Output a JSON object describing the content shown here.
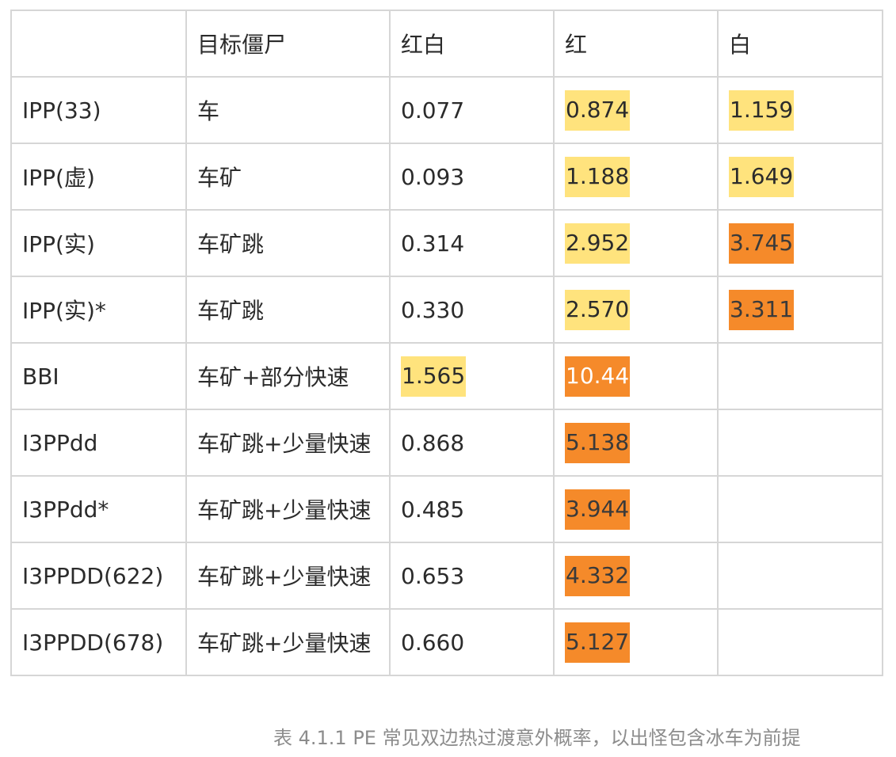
{
  "table": {
    "headers": [
      "",
      "目标僵尸",
      "红白",
      "红",
      "白"
    ],
    "rows": [
      {
        "name": "IPP(33)",
        "target": "车",
        "hongbai": "0.077",
        "hong": "0.874",
        "bai": "1.159"
      },
      {
        "name": "IPP(虚)",
        "target": "车矿",
        "hongbai": "0.093",
        "hong": "1.188",
        "bai": "1.649"
      },
      {
        "name": "IPP(实)",
        "target": "车矿跳",
        "hongbai": "0.314",
        "hong": "2.952",
        "bai": "3.745"
      },
      {
        "name": "IPP(实)*",
        "target": "车矿跳",
        "hongbai": "0.330",
        "hong": "2.570",
        "bai": "3.311"
      },
      {
        "name": "BBI",
        "target": "车矿+部分快速",
        "hongbai": "1.565",
        "hong": "10.44",
        "bai": ""
      },
      {
        "name": "I3PPdd",
        "target": "车矿跳+少量快速",
        "hongbai": "0.868",
        "hong": "5.138",
        "bai": ""
      },
      {
        "name": "I3PPdd*",
        "target": "车矿跳+少量快速",
        "hongbai": "0.485",
        "hong": "3.944",
        "bai": ""
      },
      {
        "name": "I3PPDD(622)",
        "target": "车矿跳+少量快速",
        "hongbai": "0.653",
        "hong": "4.332",
        "bai": ""
      },
      {
        "name": "I3PPDD(678)",
        "target": "车矿跳+少量快速",
        "hongbai": "0.660",
        "hong": "5.127",
        "bai": ""
      }
    ]
  },
  "highlight_colors": {
    "yellow": "#ffe37d",
    "orange": "#f58a2a"
  },
  "caption": "表 4.1.1  PE 常见双边热过渡意外概率，以出怪包含冰车为前提"
}
